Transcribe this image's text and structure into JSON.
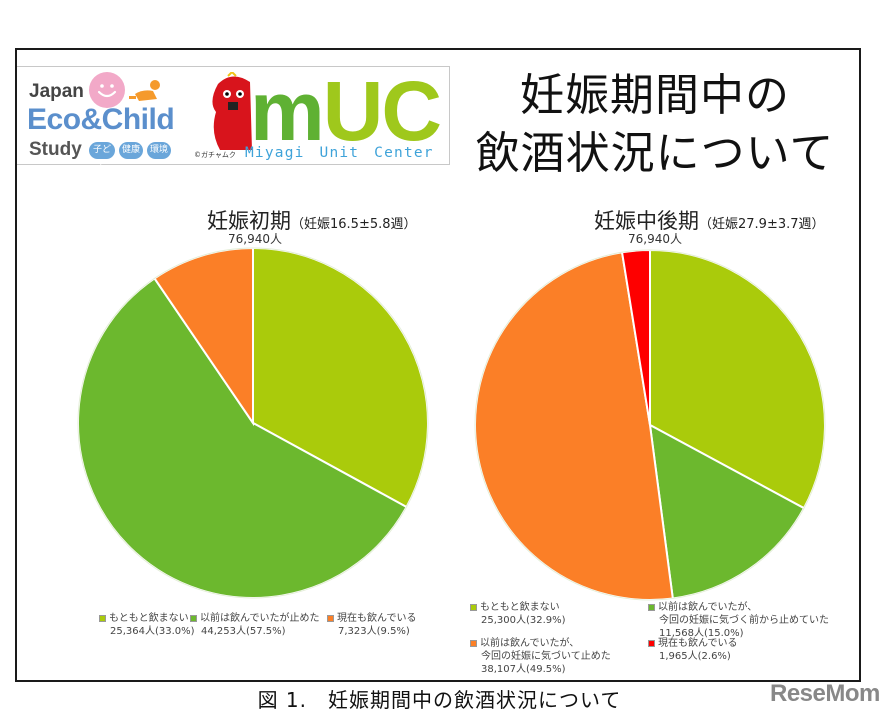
{
  "header": {
    "title_line1": "妊娠期間中の",
    "title_line2": "飲酒状況について"
  },
  "logo": {
    "jecs_japan": "Japan",
    "jecs_eco_child": "Eco&Child",
    "jecs_study": "Study",
    "pills": [
      "子ども",
      "健康",
      "環境"
    ],
    "muc_m": "m",
    "muc_uc": "UC",
    "muc_subtitle": "Miyagi Unit Center",
    "copyright": "©ガチャムク"
  },
  "colors": {
    "no_drink": "#aacb0b",
    "quit": "#6cb82e",
    "quit_after": "#fb7f27",
    "still": "#fe0000",
    "frame": "#1a1a1a"
  },
  "chart_data": [
    {
      "type": "pie",
      "title": "妊娠初期",
      "subtitle": "（妊娠16.5±5.8週）",
      "total_label": "76,940人",
      "categories": [
        "もともと飲まない",
        "以前は飲んでいたが止めた",
        "現在も飲んでいる"
      ],
      "values": [
        25364,
        44253,
        7323
      ],
      "percent": [
        33.0,
        57.5,
        9.5
      ],
      "colors": [
        "#aacb0b",
        "#6cb82e",
        "#fb7f27"
      ],
      "legend": [
        {
          "label": "もともと飲まない",
          "value": "25,364人(33.0%)"
        },
        {
          "label": "以前は飲んでいたが止めた",
          "value": "44,253人(57.5%)"
        },
        {
          "label": "現在も飲んでいる",
          "value": "7,323人(9.5%)"
        }
      ],
      "legend_position": "bottom"
    },
    {
      "type": "pie",
      "title": "妊娠中後期",
      "subtitle": "（妊娠27.9±3.7週）",
      "total_label": "76,940人",
      "categories": [
        "もともと飲まない",
        "以前は飲んでいたが、今回の妊娠に気づく前から止めていた",
        "以前は飲んでいたが、今回の妊娠に気づいて止めた",
        "現在も飲んでいる"
      ],
      "values": [
        25300,
        11568,
        38107,
        1965
      ],
      "percent": [
        32.9,
        15.0,
        49.5,
        2.6
      ],
      "colors": [
        "#aacb0b",
        "#6cb82e",
        "#fb7f27",
        "#fe0000"
      ],
      "legend": [
        {
          "label": "もともと飲まない",
          "label2": "",
          "value": "25,300人(32.9%)"
        },
        {
          "label": "以前は飲んでいたが、",
          "label2": "今回の妊娠に気づく前から止めていた",
          "value": "11,568人(15.0%)"
        },
        {
          "label": "以前は飲んでいたが、",
          "label2": "今回の妊娠に気づいて止めた",
          "value": "38,107人(49.5%)"
        },
        {
          "label": "現在も飲んでいる",
          "label2": "",
          "value": "1,965人(2.6%)"
        }
      ],
      "legend_position": "bottom"
    }
  ],
  "caption": "図 1.　妊娠期間中の飲酒状況について",
  "watermark": "ReseMom"
}
